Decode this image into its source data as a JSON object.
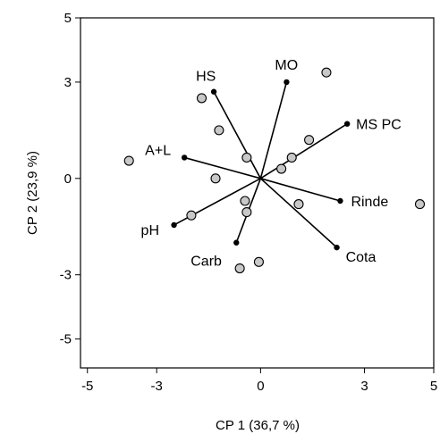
{
  "chart_data": {
    "type": "scatter",
    "title": "",
    "xlabel": "CP 1 (36,7 %)",
    "ylabel": "CP 2 (23,9 %)",
    "xlim": [
      -5.2,
      5
    ],
    "ylim": [
      -5.9,
      5
    ],
    "x_ticks": [
      -5,
      -3,
      0,
      3,
      5
    ],
    "y_ticks": [
      5,
      3,
      0,
      -3,
      -5
    ],
    "x_tick_labels": [
      "-5",
      "-3",
      "0",
      "3",
      "5"
    ],
    "y_tick_labels": [
      "5",
      "3",
      "0",
      "-3",
      "-5"
    ],
    "grid": false,
    "legend": "none",
    "points": [
      {
        "x": 1.9,
        "y": 3.3
      },
      {
        "x": -1.7,
        "y": 2.5
      },
      {
        "x": -1.2,
        "y": 1.5
      },
      {
        "x": 1.4,
        "y": 1.2
      },
      {
        "x": 0.9,
        "y": 0.65
      },
      {
        "x": 0.6,
        "y": 0.3
      },
      {
        "x": -0.4,
        "y": 0.65
      },
      {
        "x": -3.8,
        "y": 0.55
      },
      {
        "x": -1.3,
        "y": 0.0
      },
      {
        "x": -0.45,
        "y": -0.7
      },
      {
        "x": -0.4,
        "y": -1.05
      },
      {
        "x": 1.1,
        "y": -0.8
      },
      {
        "x": -2.0,
        "y": -1.15
      },
      {
        "x": 4.6,
        "y": -0.8
      },
      {
        "x": -0.05,
        "y": -2.6
      },
      {
        "x": -0.6,
        "y": -2.8
      }
    ],
    "vectors": [
      {
        "name": "MO",
        "x": 0.75,
        "y": 3.0
      },
      {
        "name": "HS",
        "x": -1.35,
        "y": 2.7
      },
      {
        "name": "MS PC",
        "x": 2.5,
        "y": 1.7
      },
      {
        "name": "A+L",
        "x": -2.2,
        "y": 0.65
      },
      {
        "name": "Rinde",
        "x": 2.3,
        "y": -0.7
      },
      {
        "name": "pH",
        "x": -2.5,
        "y": -1.45
      },
      {
        "name": "Carb",
        "x": -0.7,
        "y": -2.0
      },
      {
        "name": "Cota",
        "x": 2.2,
        "y": -2.15
      }
    ],
    "colors": {
      "point_fill": "#c8c8c8",
      "point_stroke": "#000000",
      "vector": "#000000",
      "axis": "#000000"
    }
  }
}
